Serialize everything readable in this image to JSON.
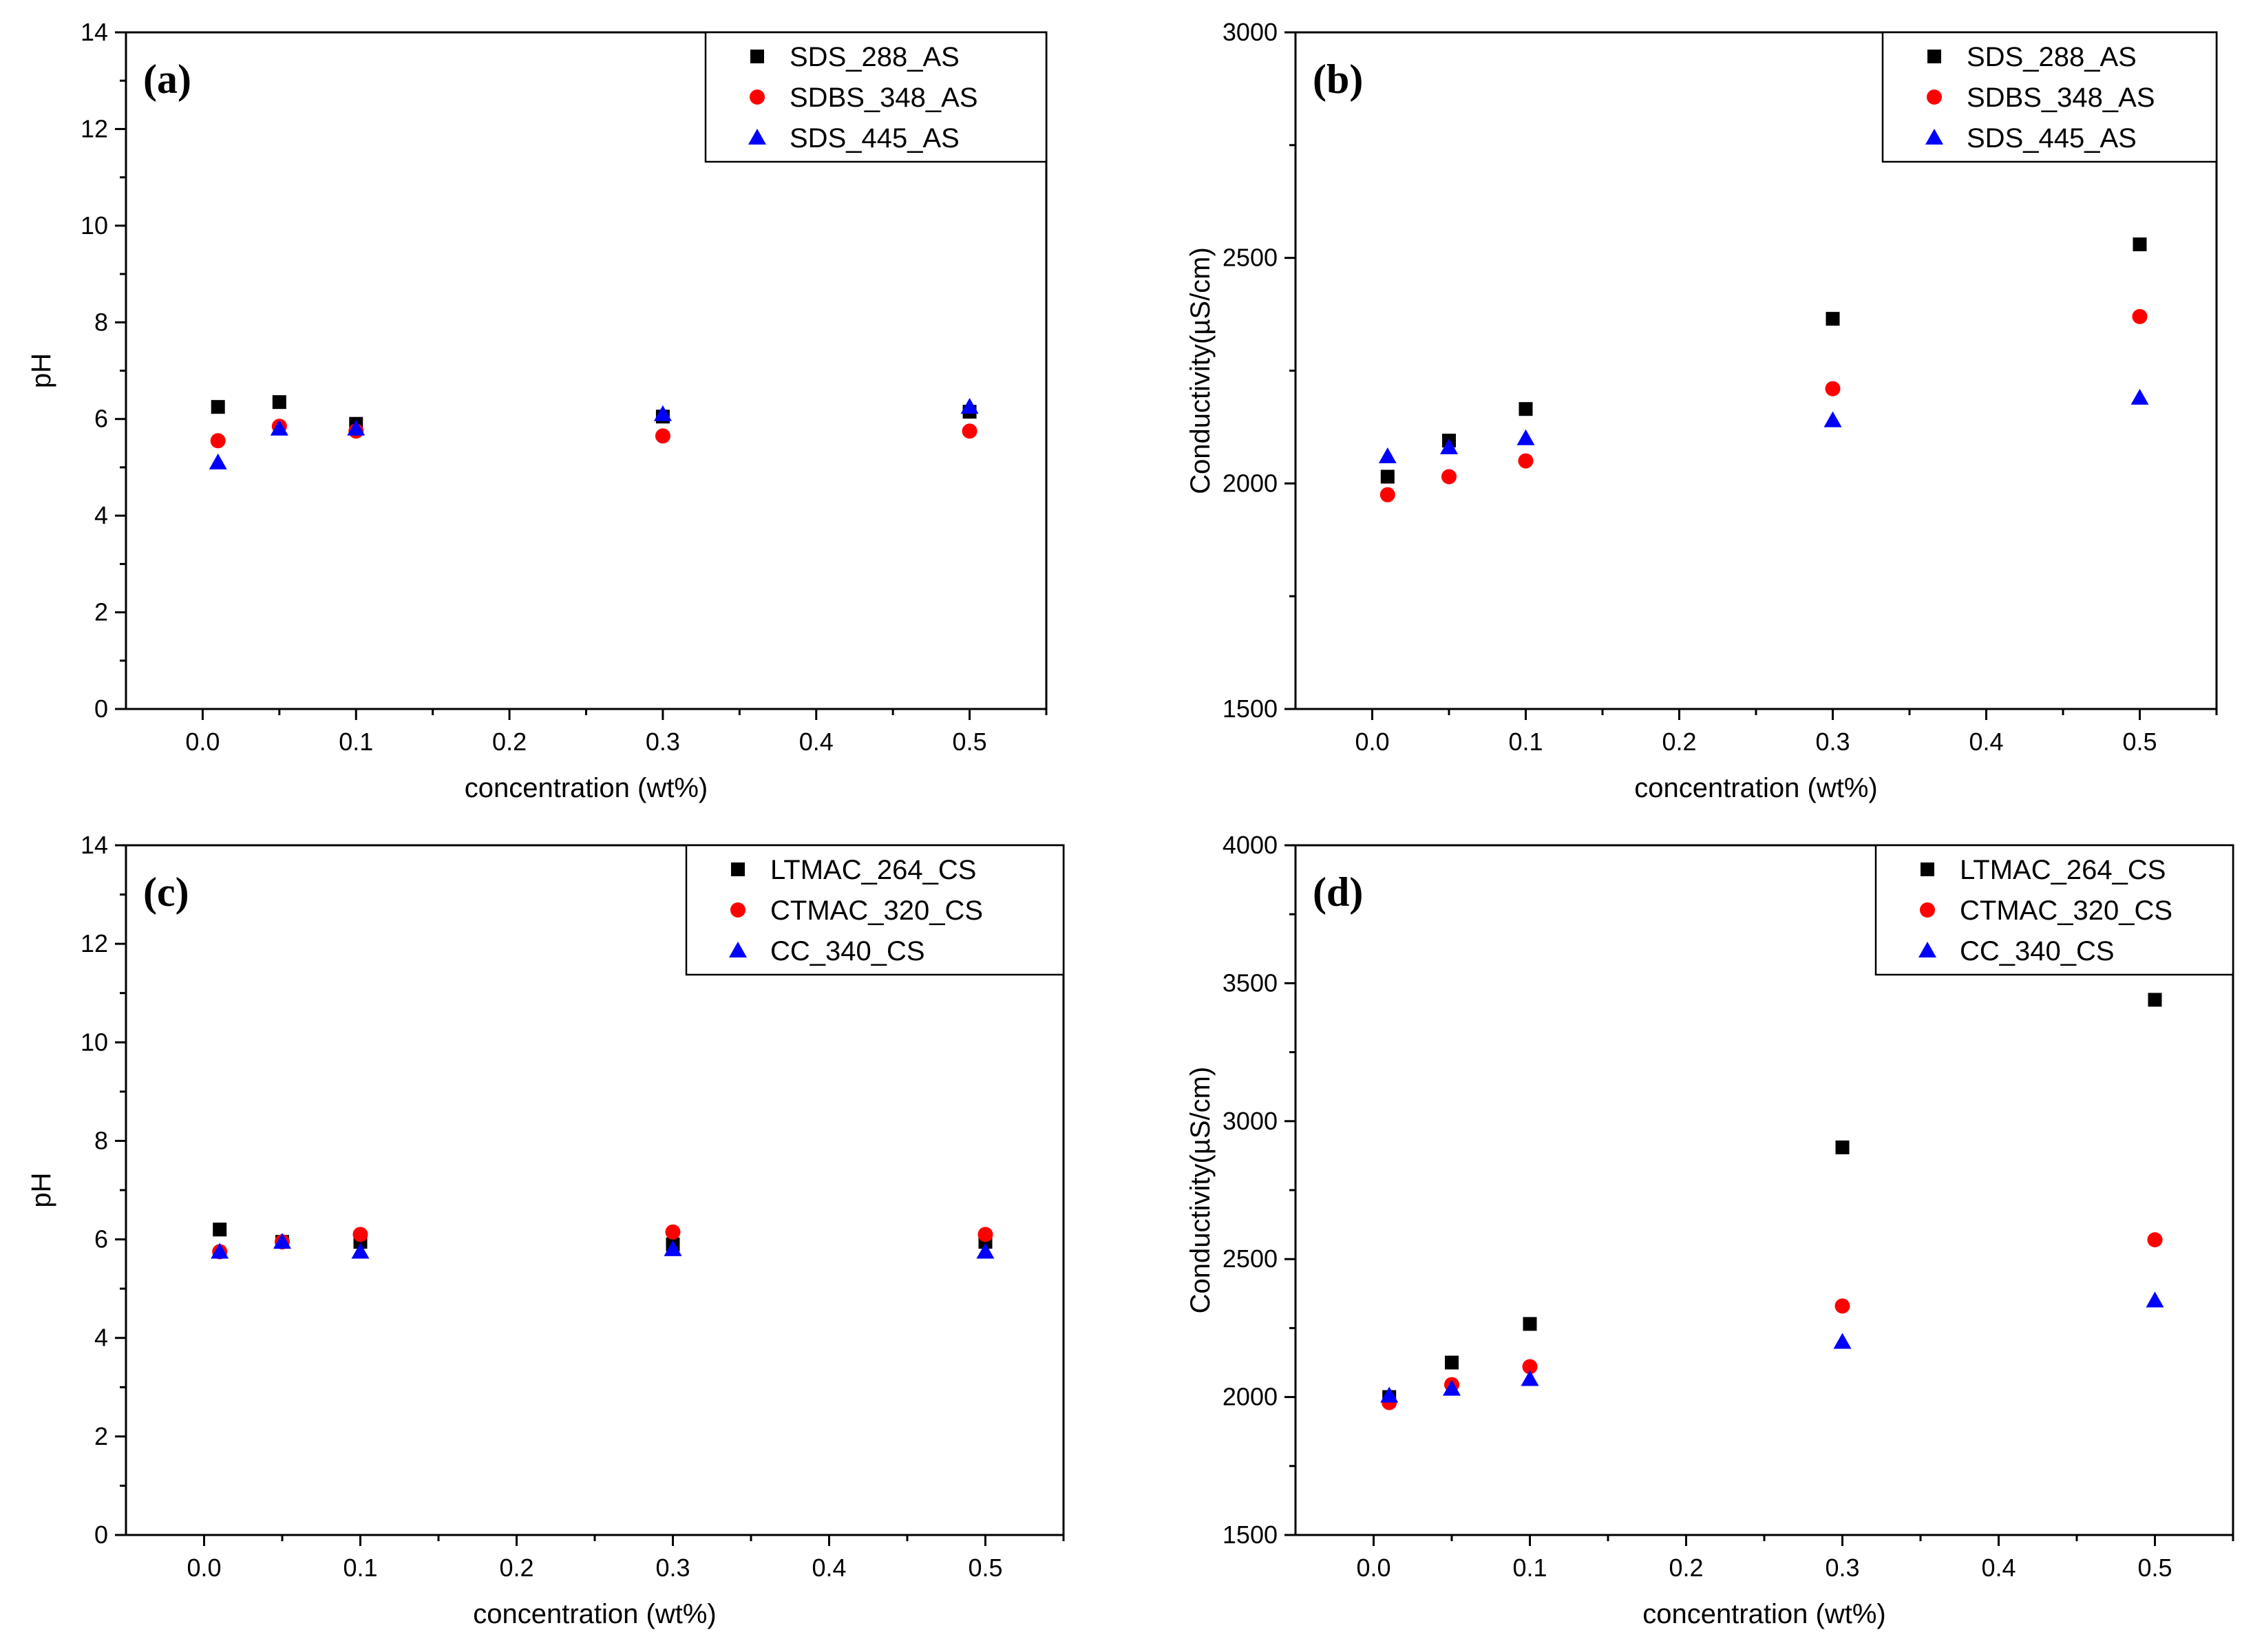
{
  "chart_data": [
    {
      "type": "scatter",
      "panel_label": "(a)",
      "xlabel": "concentration (wt%)",
      "ylabel": "pH",
      "xlim": [
        -0.05,
        0.55
      ],
      "ylim": [
        0,
        14
      ],
      "xticks": [
        "0.0",
        "0.1",
        "0.2",
        "0.3",
        "0.4",
        "0.5"
      ],
      "yticks": [
        "0",
        "2",
        "4",
        "6",
        "8",
        "10",
        "12",
        "14"
      ],
      "legend_position": "top-right",
      "grid": false,
      "x": [
        0.01,
        0.05,
        0.1,
        0.3,
        0.5
      ],
      "series": [
        {
          "name": "SDS_288_AS",
          "marker": "square",
          "color": "#000000",
          "values": [
            6.25,
            6.35,
            5.9,
            6.05,
            6.15
          ]
        },
        {
          "name": "SDBS_348_AS",
          "marker": "circle",
          "color": "#ff0000",
          "values": [
            5.55,
            5.85,
            5.75,
            5.65,
            5.75
          ]
        },
        {
          "name": "SDS_445_AS",
          "marker": "triangle",
          "color": "#0000ff",
          "values": [
            5.1,
            5.8,
            5.8,
            6.1,
            6.25
          ]
        }
      ]
    },
    {
      "type": "scatter",
      "panel_label": "(b)",
      "xlabel": "concentration (wt%)",
      "ylabel": "Conductivity(µS/cm)",
      "xlim": [
        -0.05,
        0.55
      ],
      "ylim": [
        1500,
        3000
      ],
      "xticks": [
        "0.0",
        "0.1",
        "0.2",
        "0.3",
        "0.4",
        "0.5"
      ],
      "yticks": [
        "1500",
        "2000",
        "2500",
        "3000"
      ],
      "legend_position": "top-right",
      "grid": false,
      "x": [
        0.01,
        0.05,
        0.1,
        0.3,
        0.5
      ],
      "series": [
        {
          "name": "SDS_288_AS",
          "marker": "square",
          "color": "#000000",
          "values": [
            2015,
            2095,
            2165,
            2365,
            2530
          ]
        },
        {
          "name": "SDBS_348_AS",
          "marker": "circle",
          "color": "#ff0000",
          "values": [
            1975,
            2015,
            2050,
            2210,
            2370
          ]
        },
        {
          "name": "SDS_445_AS",
          "marker": "triangle",
          "color": "#0000ff",
          "values": [
            2060,
            2080,
            2100,
            2140,
            2190
          ]
        }
      ]
    },
    {
      "type": "scatter",
      "panel_label": "(c)",
      "xlabel": "concentration (wt%)",
      "ylabel": "pH",
      "xlim": [
        -0.05,
        0.55
      ],
      "ylim": [
        0,
        14
      ],
      "xticks": [
        "0.0",
        "0.1",
        "0.2",
        "0.3",
        "0.4",
        "0.5"
      ],
      "yticks": [
        "0",
        "2",
        "4",
        "6",
        "8",
        "10",
        "12",
        "14"
      ],
      "legend_position": "top-right",
      "grid": false,
      "x": [
        0.01,
        0.05,
        0.1,
        0.3,
        0.5
      ],
      "series": [
        {
          "name": "LTMAC_264_CS",
          "marker": "square",
          "color": "#000000",
          "values": [
            6.2,
            5.95,
            5.95,
            5.9,
            5.95
          ]
        },
        {
          "name": "CTMAC_320_CS",
          "marker": "circle",
          "color": "#ff0000",
          "values": [
            5.75,
            5.95,
            6.1,
            6.15,
            6.1
          ]
        },
        {
          "name": "CC_340_CS",
          "marker": "triangle",
          "color": "#0000ff",
          "values": [
            5.75,
            5.95,
            5.75,
            5.8,
            5.75
          ]
        }
      ]
    },
    {
      "type": "scatter",
      "panel_label": "(d)",
      "xlabel": "concentration (wt%)",
      "ylabel": "Conductivity(µS/cm)",
      "xlim": [
        -0.05,
        0.55
      ],
      "ylim": [
        1500,
        4000
      ],
      "xticks": [
        "0.0",
        "0.1",
        "0.2",
        "0.3",
        "0.4",
        "0.5"
      ],
      "yticks": [
        "1500",
        "2000",
        "2500",
        "3000",
        "3500",
        "4000"
      ],
      "legend_position": "top-right",
      "grid": false,
      "x": [
        0.01,
        0.05,
        0.1,
        0.3,
        0.5
      ],
      "series": [
        {
          "name": "LTMAC_264_CS",
          "marker": "square",
          "color": "#000000",
          "values": [
            2000,
            2125,
            2265,
            2905,
            3440
          ]
        },
        {
          "name": "CTMAC_320_CS",
          "marker": "circle",
          "color": "#ff0000",
          "values": [
            1980,
            2045,
            2110,
            2330,
            2570
          ]
        },
        {
          "name": "CC_340_CS",
          "marker": "triangle",
          "color": "#0000ff",
          "values": [
            2005,
            2030,
            2065,
            2200,
            2350
          ]
        }
      ]
    }
  ]
}
